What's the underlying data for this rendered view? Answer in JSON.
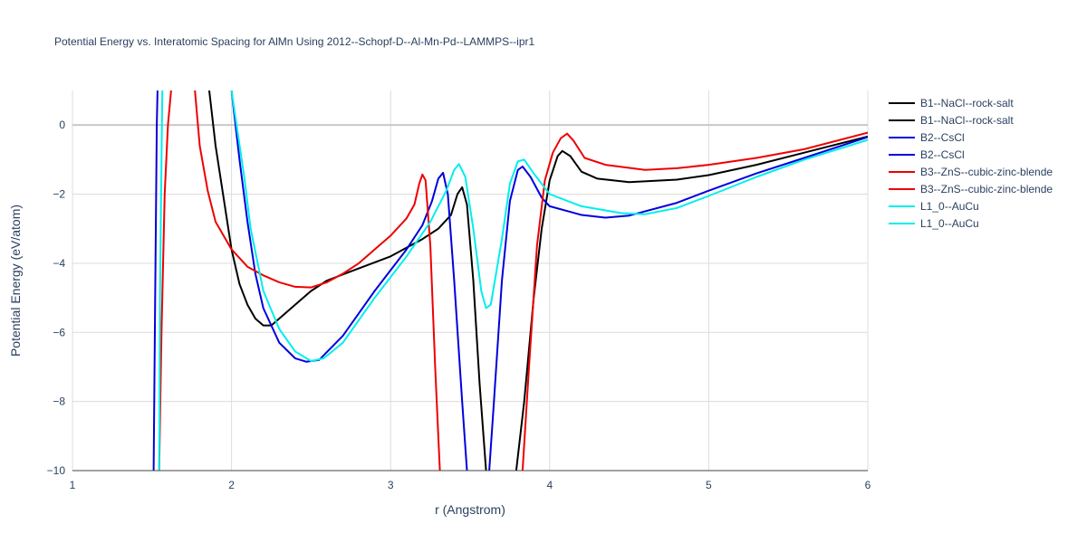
{
  "chart_data": {
    "type": "line",
    "title": "Potential Energy vs. Interatomic Spacing for AlMn Using 2012--Schopf-D--Al-Mn-Pd--LAMMPS--ipr1",
    "xlabel": "r (Angstrom)",
    "ylabel": "Potential Energy (eV/atom)",
    "xlim": [
      1,
      6
    ],
    "ylim": [
      -10,
      1
    ],
    "x_ticks": [
      "1",
      "2",
      "3",
      "4",
      "5",
      "6"
    ],
    "y_ticks": [
      "0",
      "−2",
      "−4",
      "−6",
      "−8",
      "−10"
    ],
    "grid": true,
    "legend_position": "top-right",
    "series": [
      {
        "name": "B1--NaCl--rock-salt",
        "color": "#000000",
        "points": [
          [
            1.86,
            1.0
          ],
          [
            1.9,
            -0.6
          ],
          [
            1.95,
            -2.1
          ],
          [
            2.0,
            -3.6
          ],
          [
            2.05,
            -4.6
          ],
          [
            2.1,
            -5.2
          ],
          [
            2.15,
            -5.6
          ],
          [
            2.2,
            -5.8
          ],
          [
            2.25,
            -5.8
          ],
          [
            2.3,
            -5.6
          ],
          [
            2.4,
            -5.2
          ],
          [
            2.5,
            -4.8
          ],
          [
            2.6,
            -4.5
          ],
          [
            2.8,
            -4.15
          ],
          [
            3.0,
            -3.8
          ],
          [
            3.2,
            -3.3
          ],
          [
            3.3,
            -3.0
          ],
          [
            3.38,
            -2.6
          ],
          [
            3.42,
            -2.0
          ],
          [
            3.45,
            -1.8
          ],
          [
            3.48,
            -2.3
          ],
          [
            3.52,
            -4.5
          ],
          [
            3.56,
            -7.5
          ],
          [
            3.6,
            -10.0
          ]
        ]
      },
      {
        "name": "B1--NaCl--rock-salt",
        "color": "#000000",
        "points": [
          [
            3.79,
            -10.0
          ],
          [
            3.84,
            -8.0
          ],
          [
            3.9,
            -5.0
          ],
          [
            3.95,
            -3.0
          ],
          [
            4.0,
            -1.6
          ],
          [
            4.05,
            -0.9
          ],
          [
            4.08,
            -0.75
          ],
          [
            4.13,
            -0.9
          ],
          [
            4.2,
            -1.35
          ],
          [
            4.3,
            -1.55
          ],
          [
            4.5,
            -1.65
          ],
          [
            4.8,
            -1.58
          ],
          [
            5.0,
            -1.45
          ],
          [
            5.3,
            -1.15
          ],
          [
            5.6,
            -0.8
          ],
          [
            6.0,
            -0.33
          ]
        ]
      },
      {
        "name": "B2--CsCl",
        "color": "#0000dd",
        "points": [
          [
            1.51,
            -10.0
          ],
          [
            1.52,
            -5.0
          ],
          [
            1.53,
            0.0
          ],
          [
            1.535,
            1.0
          ]
        ]
      },
      {
        "name": "B2--CsCl",
        "color": "#0000dd",
        "points": [
          [
            2.0,
            1.0
          ],
          [
            2.05,
            -1.0
          ],
          [
            2.1,
            -2.8
          ],
          [
            2.15,
            -4.3
          ],
          [
            2.2,
            -5.3
          ],
          [
            2.3,
            -6.3
          ],
          [
            2.4,
            -6.75
          ],
          [
            2.47,
            -6.85
          ],
          [
            2.55,
            -6.8
          ],
          [
            2.7,
            -6.1
          ],
          [
            2.9,
            -4.8
          ],
          [
            3.1,
            -3.6
          ],
          [
            3.2,
            -2.9
          ],
          [
            3.26,
            -2.2
          ],
          [
            3.3,
            -1.55
          ],
          [
            3.33,
            -1.38
          ],
          [
            3.36,
            -2.0
          ],
          [
            3.4,
            -4.5
          ],
          [
            3.45,
            -8.0
          ],
          [
            3.48,
            -10.0
          ]
        ]
      },
      {
        "name": "B2--CsCl",
        "color": "#0000dd",
        "points": [
          [
            3.62,
            -10.0
          ],
          [
            3.65,
            -8.0
          ],
          [
            3.7,
            -4.5
          ],
          [
            3.75,
            -2.2
          ],
          [
            3.8,
            -1.3
          ],
          [
            3.83,
            -1.2
          ],
          [
            3.88,
            -1.5
          ],
          [
            3.95,
            -2.1
          ],
          [
            4.0,
            -2.35
          ],
          [
            4.2,
            -2.6
          ],
          [
            4.35,
            -2.68
          ],
          [
            4.5,
            -2.62
          ],
          [
            4.8,
            -2.25
          ],
          [
            5.0,
            -1.9
          ],
          [
            5.3,
            -1.4
          ],
          [
            5.6,
            -0.95
          ],
          [
            6.0,
            -0.35
          ]
        ]
      },
      {
        "name": "B3--ZnS--cubic-zinc-blende",
        "color": "#ee0000",
        "points": [
          [
            1.545,
            -10.0
          ],
          [
            1.56,
            -6.0
          ],
          [
            1.58,
            -2.0
          ],
          [
            1.6,
            0.0
          ],
          [
            1.62,
            1.0
          ]
        ]
      },
      {
        "name": "B3--ZnS--cubic-zinc-blende",
        "color": "#ee0000",
        "points": [
          [
            1.77,
            1.0
          ],
          [
            1.8,
            -0.6
          ],
          [
            1.85,
            -1.9
          ],
          [
            1.9,
            -2.8
          ],
          [
            2.0,
            -3.6
          ],
          [
            2.1,
            -4.1
          ],
          [
            2.2,
            -4.35
          ],
          [
            2.3,
            -4.55
          ],
          [
            2.4,
            -4.68
          ],
          [
            2.5,
            -4.7
          ],
          [
            2.6,
            -4.55
          ],
          [
            2.7,
            -4.3
          ],
          [
            2.8,
            -4.0
          ],
          [
            2.9,
            -3.6
          ],
          [
            3.0,
            -3.2
          ],
          [
            3.1,
            -2.7
          ],
          [
            3.15,
            -2.3
          ],
          [
            3.18,
            -1.7
          ],
          [
            3.2,
            -1.43
          ],
          [
            3.22,
            -1.6
          ],
          [
            3.25,
            -3.5
          ],
          [
            3.28,
            -7.0
          ],
          [
            3.31,
            -10.0
          ]
        ]
      },
      {
        "name": "B3--ZnS--cubic-zinc-blende",
        "color": "#ee0000",
        "points": [
          [
            3.83,
            -10.0
          ],
          [
            3.87,
            -7.0
          ],
          [
            3.92,
            -3.5
          ],
          [
            3.97,
            -1.6
          ],
          [
            4.02,
            -0.8
          ],
          [
            4.07,
            -0.38
          ],
          [
            4.11,
            -0.25
          ],
          [
            4.15,
            -0.45
          ],
          [
            4.22,
            -0.95
          ],
          [
            4.35,
            -1.15
          ],
          [
            4.6,
            -1.3
          ],
          [
            4.8,
            -1.25
          ],
          [
            5.0,
            -1.15
          ],
          [
            5.3,
            -0.95
          ],
          [
            5.6,
            -0.7
          ],
          [
            6.0,
            -0.22
          ]
        ]
      },
      {
        "name": "L1_0--AuCu",
        "color": "#00eeee",
        "points": [
          [
            1.545,
            -10.0
          ],
          [
            1.55,
            -5.0
          ],
          [
            1.56,
            -1.0
          ],
          [
            1.565,
            1.0
          ]
        ]
      },
      {
        "name": "L1_0--AuCu",
        "color": "#00eeee",
        "points": [
          [
            2.0,
            1.0
          ],
          [
            2.08,
            -1.5
          ],
          [
            2.12,
            -3.0
          ],
          [
            2.2,
            -4.8
          ],
          [
            2.3,
            -5.9
          ],
          [
            2.4,
            -6.55
          ],
          [
            2.5,
            -6.83
          ],
          [
            2.58,
            -6.75
          ],
          [
            2.7,
            -6.3
          ],
          [
            2.9,
            -5.0
          ],
          [
            3.1,
            -3.8
          ],
          [
            3.25,
            -2.8
          ],
          [
            3.35,
            -1.9
          ],
          [
            3.4,
            -1.3
          ],
          [
            3.43,
            -1.13
          ],
          [
            3.47,
            -1.5
          ],
          [
            3.52,
            -3.0
          ],
          [
            3.57,
            -4.8
          ],
          [
            3.6,
            -5.3
          ],
          [
            3.63,
            -5.2
          ],
          [
            3.7,
            -3.3
          ],
          [
            3.75,
            -1.7
          ],
          [
            3.8,
            -1.05
          ],
          [
            3.84,
            -1.0
          ],
          [
            3.9,
            -1.4
          ],
          [
            4.0,
            -2.0
          ],
          [
            4.2,
            -2.35
          ],
          [
            4.45,
            -2.55
          ],
          [
            4.6,
            -2.58
          ],
          [
            4.8,
            -2.4
          ],
          [
            5.0,
            -2.05
          ],
          [
            5.3,
            -1.5
          ],
          [
            5.6,
            -1.0
          ],
          [
            6.0,
            -0.43
          ]
        ]
      }
    ],
    "legend": [
      {
        "label": "B1--NaCl--rock-salt",
        "color": "#000000"
      },
      {
        "label": "B1--NaCl--rock-salt",
        "color": "#000000"
      },
      {
        "label": "B2--CsCl",
        "color": "#0000dd"
      },
      {
        "label": "B2--CsCl",
        "color": "#0000dd"
      },
      {
        "label": "B3--ZnS--cubic-zinc-blende",
        "color": "#ee0000"
      },
      {
        "label": "B3--ZnS--cubic-zinc-blende",
        "color": "#ee0000"
      },
      {
        "label": "L1_0--AuCu",
        "color": "#00eeee"
      },
      {
        "label": "L1_0--AuCu",
        "color": "#00eeee"
      }
    ]
  }
}
